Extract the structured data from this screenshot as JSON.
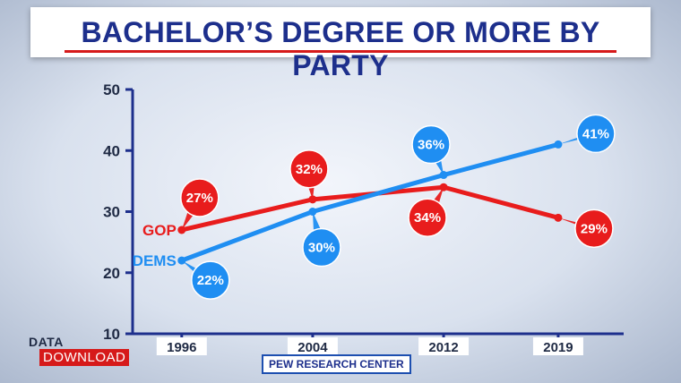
{
  "title": "BACHELOR’S DEGREE OR MORE BY PARTY",
  "brand": {
    "top": "DATA",
    "bottom": "DOWNLOAD"
  },
  "source": "PEW RESEARCH CENTER",
  "colors": {
    "gop": "#e81c1c",
    "dems": "#1f8ef2",
    "axis": "#1d2f8c"
  },
  "chart_data": {
    "type": "line",
    "categories": [
      "1996",
      "2004",
      "2012",
      "2019"
    ],
    "x": [
      1996,
      2004,
      2012,
      2019
    ],
    "ylim": [
      10,
      50
    ],
    "yticks": [
      10,
      20,
      30,
      40,
      50
    ],
    "grid": false,
    "series": [
      {
        "name": "GOP",
        "values": [
          27,
          32,
          34,
          29
        ],
        "labels": [
          "27%",
          "32%",
          "34%",
          "29%"
        ]
      },
      {
        "name": "DEMS",
        "values": [
          22,
          30,
          36,
          41
        ],
        "labels": [
          "22%",
          "30%",
          "36%",
          "41%"
        ]
      }
    ]
  }
}
